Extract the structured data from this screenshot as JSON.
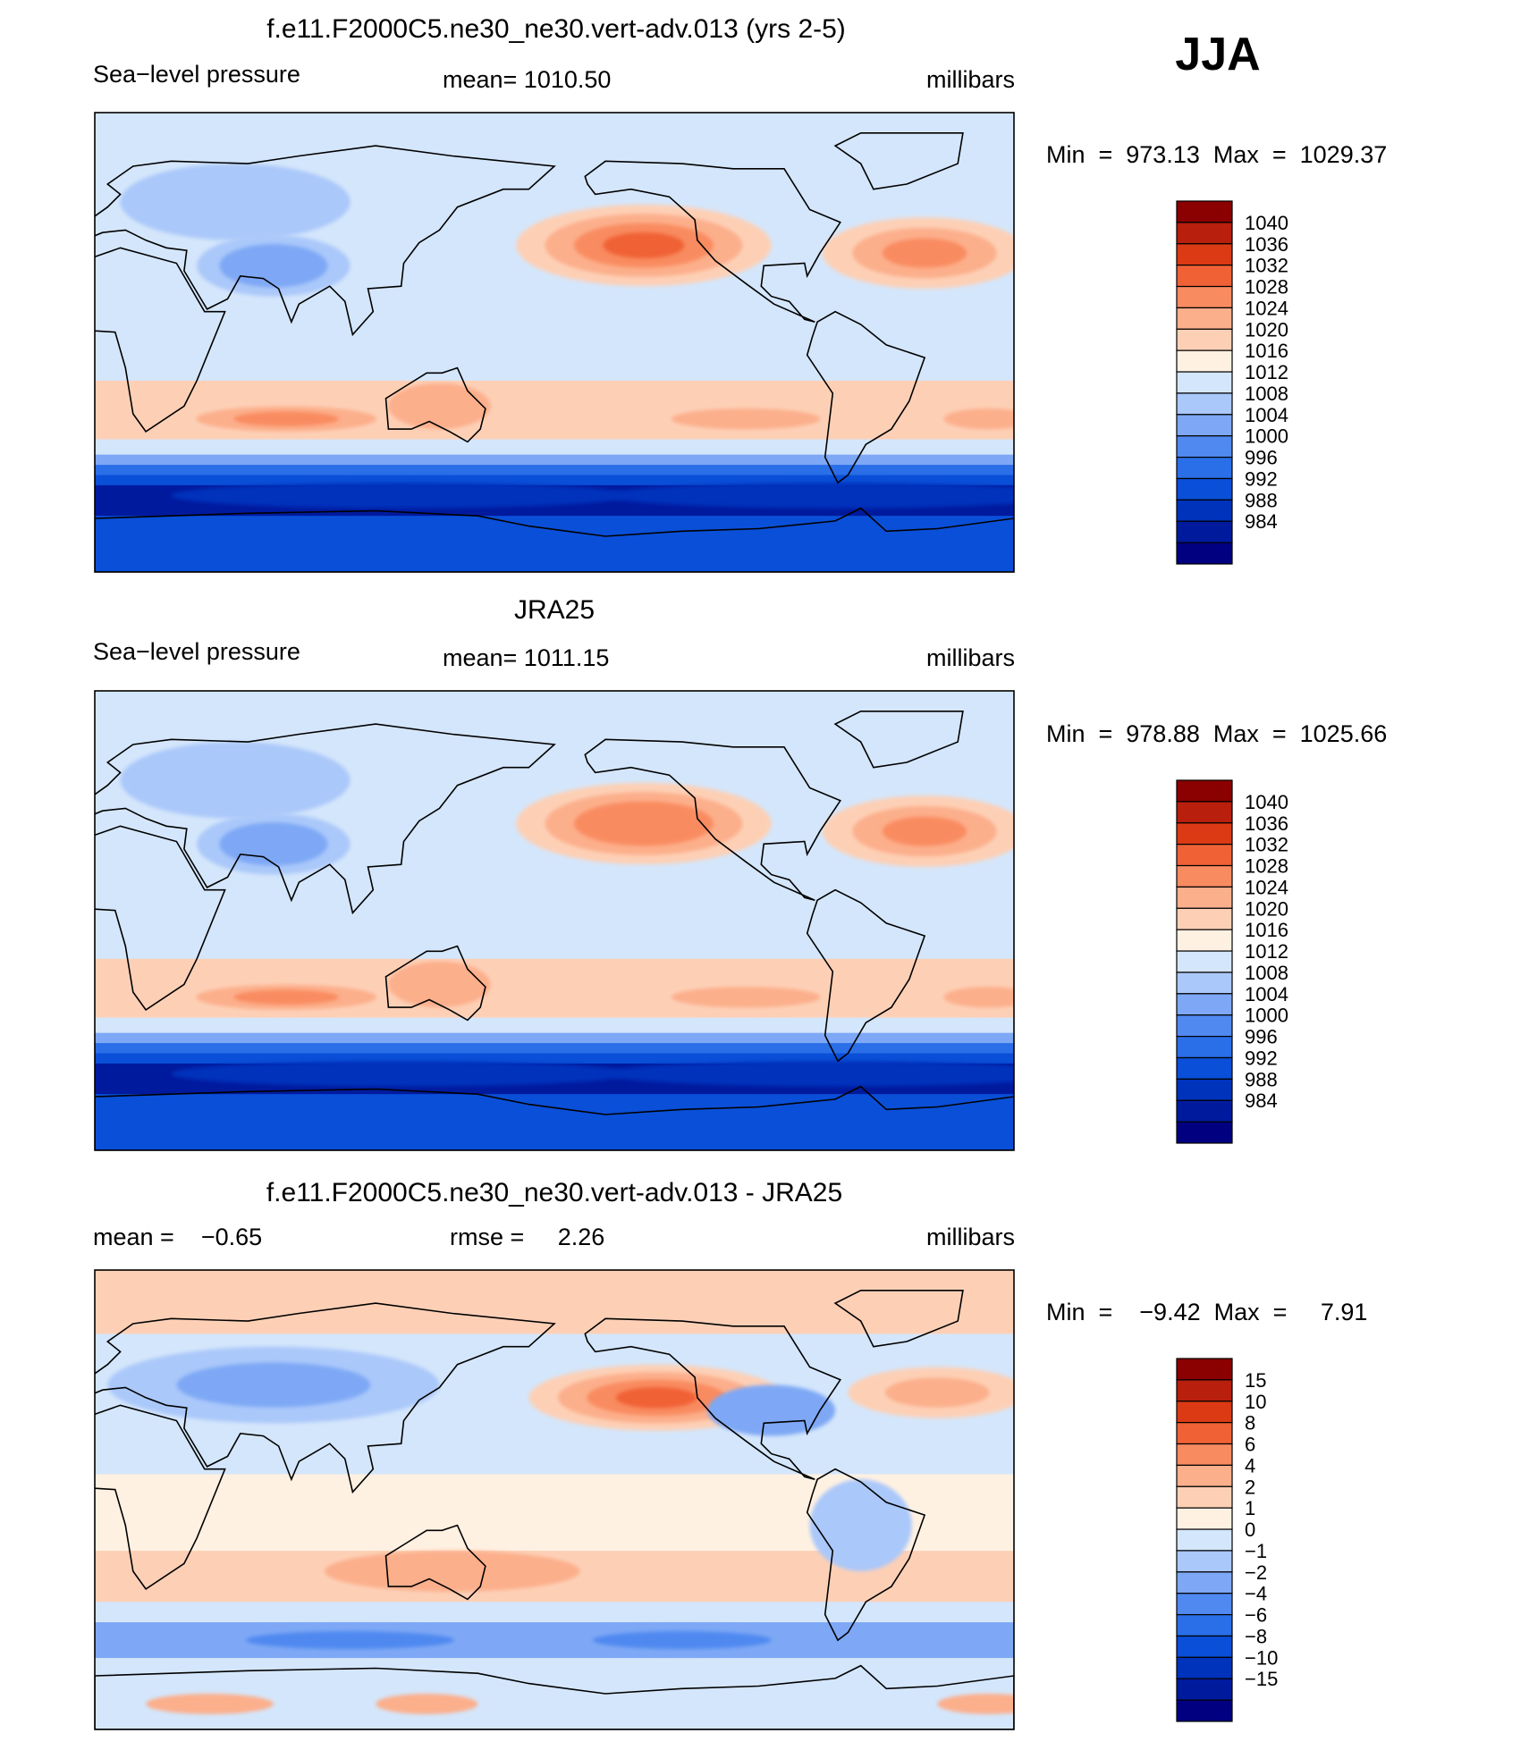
{
  "season_label": "JJA",
  "colors": {
    "abs_scale": [
      "#000080",
      "#001a9e",
      "#0033bc",
      "#0a4fd8",
      "#2a6ee8",
      "#5089f0",
      "#7ea8f5",
      "#aac8fa",
      "#d4e6fb",
      "#fff1e2",
      "#fdd0b6",
      "#fcaf8b",
      "#f98b60",
      "#f06236",
      "#db3a14",
      "#b81f0d",
      "#8b0000"
    ],
    "diff_scale": [
      "#000080",
      "#001a9e",
      "#0033bc",
      "#0a4fd8",
      "#2a6ee8",
      "#5089f0",
      "#7ea8f5",
      "#aac8fa",
      "#d4e6fb",
      "#fff1e2",
      "#fdd0b6",
      "#fcaf8b",
      "#f98b60",
      "#f06236",
      "#db3a14",
      "#b81f0d",
      "#8b0000"
    ]
  },
  "chart_data": [
    {
      "type": "heatmap",
      "title": "f.e11.F2000C5.ne30_ne30.vert-adv.013 (yrs 2-5)",
      "left_label": "Sea−level pressure",
      "center_label": "mean=  1010.50",
      "right_label": "millibars",
      "variable": "Sea-level pressure",
      "units": "millibars",
      "mean": 1010.5,
      "minmax_text": "Min  =  973.13  Max  =  1029.37",
      "min": 973.13,
      "max": 1029.37,
      "levels": [
        "1040",
        "1036",
        "1032",
        "1028",
        "1024",
        "1020",
        "1016",
        "1012",
        "1008",
        "1004",
        "1000",
        "996",
        "992",
        "988",
        "984"
      ],
      "features": {
        "north_pacific_high": 1030,
        "north_atlantic_high": 1026,
        "south_indian_high": 1024,
        "south_pacific_high": 1022,
        "south_atlantic_high": 1022,
        "australia": 1020,
        "south_asia_low": 1000,
        "circumpolar_trough": 984
      }
    },
    {
      "type": "heatmap",
      "title": "JRA25",
      "left_label": "Sea−level pressure",
      "center_label": "mean=  1011.15",
      "right_label": "millibars",
      "variable": "Sea-level pressure",
      "units": "millibars",
      "mean": 1011.15,
      "minmax_text": "Min  =  978.88  Max  =  1025.66",
      "min": 978.88,
      "max": 1025.66,
      "levels": [
        "1040",
        "1036",
        "1032",
        "1028",
        "1024",
        "1020",
        "1016",
        "1012",
        "1008",
        "1004",
        "1000",
        "996",
        "992",
        "988",
        "984"
      ],
      "features": {
        "north_pacific_high": 1026,
        "north_atlantic_high": 1025,
        "south_indian_high": 1024,
        "south_pacific_high": 1020,
        "south_atlantic_high": 1020,
        "australia": 1020,
        "south_asia_low": 1002,
        "circumpolar_trough": 986
      }
    },
    {
      "type": "heatmap",
      "title": "f.e11.F2000C5.ne30_ne30.vert-adv.013 - JRA25",
      "left_label": "mean =    −0.65",
      "center_label": "rmse =     2.26",
      "right_label": "millibars",
      "units": "millibars",
      "mean": -0.65,
      "rmse": 2.26,
      "minmax_text": "Min  =    −9.42  Max  =     7.91",
      "min": -9.42,
      "max": 7.91,
      "levels": [
        "15",
        "10",
        "8",
        "6",
        "4",
        "2",
        "1",
        "0",
        "−1",
        "−2",
        "−4",
        "−6",
        "−8",
        "−10",
        "−15"
      ],
      "features": {
        "north_pacific": 6,
        "north_atlantic": 3,
        "eurasia": -3,
        "southern_ocean": -6,
        "antarctic_coast": 3,
        "australia": 2
      }
    }
  ]
}
